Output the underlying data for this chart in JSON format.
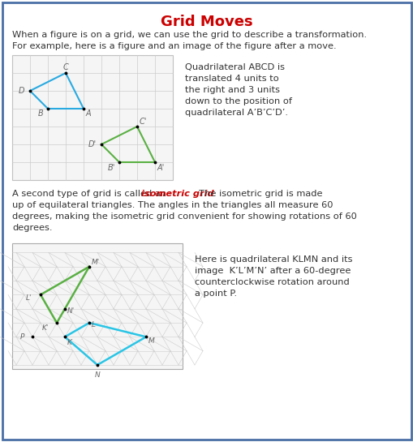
{
  "title": "Grid Moves",
  "title_color": "#cc0000",
  "border_color": "#4a6fa5",
  "bg_color": "#ffffff",
  "text1_line1": "When a figure is on a grid, we can use the grid to describe a transformation.",
  "text1_line2": "For example, here is a figure and an image of the figure after a move.",
  "right_text1_lines": [
    "Quadrilateral ABCD is",
    "translated 4 units to",
    "the right and 3 units",
    "down to the position of",
    "quadrilateral A’B’C’D’."
  ],
  "text2_pre": "A second type of grid is called an ",
  "text2_italic": "isometric grid",
  "text2_post_lines": [
    ". The isometric grid is made",
    "up of equilateral triangles. The angles in the triangles all measure 60",
    "degrees, making the isometric grid convenient for showing rotations of 60",
    "degrees."
  ],
  "right_text2_lines": [
    "Here is quadrilateral KLMN and its",
    "image  K’L’M’N’ after a 60-degree",
    "counterclockwise rotation around",
    "a point P."
  ],
  "blue": "#29aae1",
  "green": "#5ab043",
  "cyan": "#29c5e6",
  "grid_line_color": "#cccccc",
  "grid_border_color": "#aaaaaa",
  "text_color": "#333333",
  "label_color": "#666666"
}
